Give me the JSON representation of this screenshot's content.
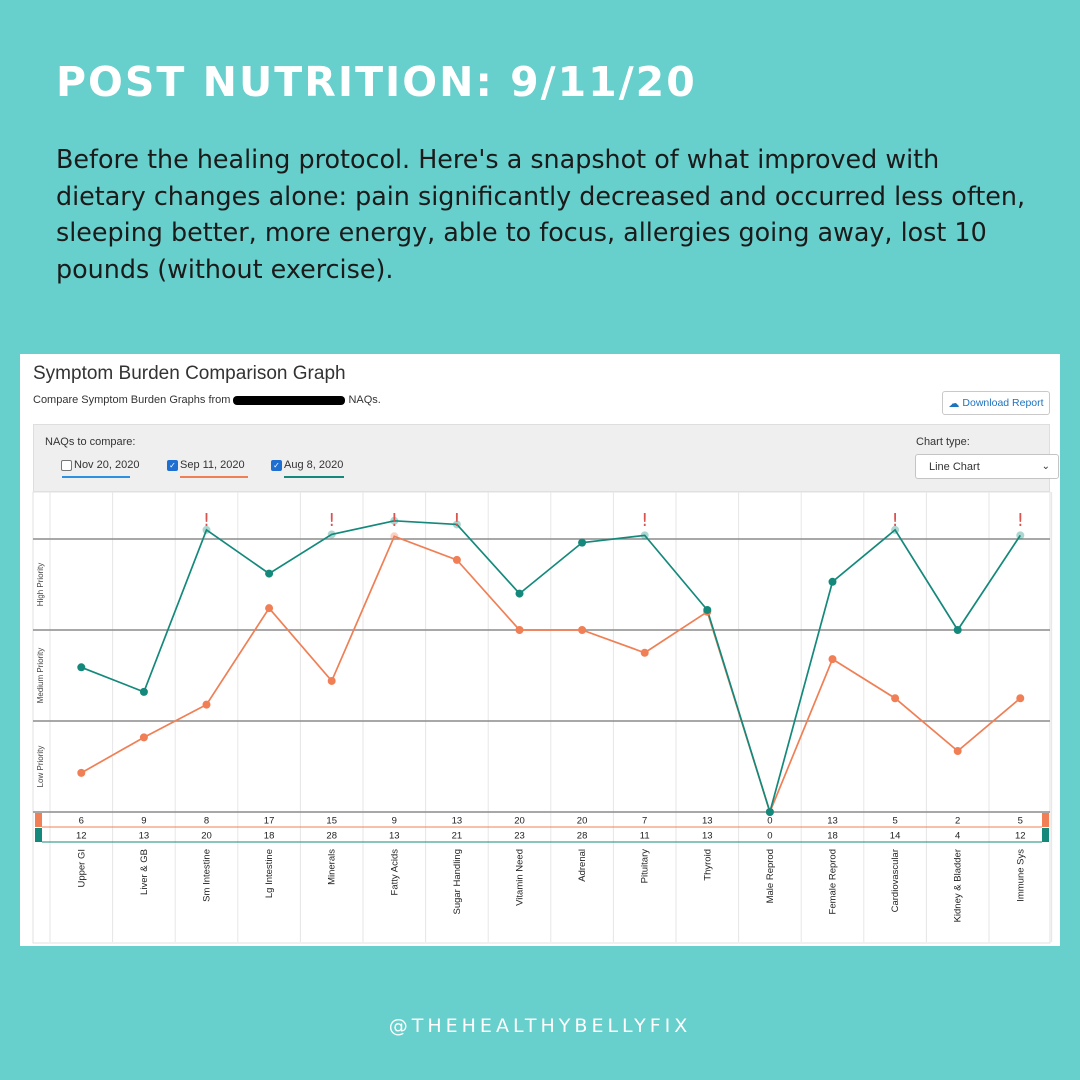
{
  "headline": "POST NUTRITION: 9/11/20",
  "subtext": "Before the healing protocol. Here's a snapshot of what improved with dietary changes alone: pain significantly decreased and occurred less often, sleeping better, more energy, able to focus, allergies going away, lost 10 pounds (without exercise).",
  "card": {
    "title": "Symptom Burden Comparison Graph",
    "subtitle_before": "Compare Symptom Burden Graphs from",
    "subtitle_after": "NAQs.",
    "download_label": "Download Report",
    "download_icon": "cloud-download-icon",
    "naq_label": "NAQs to compare:",
    "naqs": [
      {
        "label": "Nov 20, 2020",
        "checked": false,
        "color": "#2f8fe0"
      },
      {
        "label": "Sep 11, 2020",
        "checked": true,
        "color": "#f07f55"
      },
      {
        "label": "Aug 8, 2020",
        "checked": true,
        "color": "#14897b"
      }
    ],
    "chart_type_label": "Chart type:",
    "chart_type_value": "Line Chart"
  },
  "chart_data": {
    "type": "line",
    "categories": [
      "Upper GI",
      "Liver & GB",
      "Sm Intestine",
      "Lg Intestine",
      "Minerals",
      "Fatty Acids",
      "Sugar Handling",
      "Vitamin Need",
      "Adrenal",
      "Pituitary",
      "Thyroid",
      "Male Reprod",
      "Female Reprod",
      "Cardiovascular",
      "Kidney & Bladder",
      "Immune Sys"
    ],
    "bands": [
      "Low Priority",
      "Medium Priority",
      "High Priority"
    ],
    "series": [
      {
        "color": "#f07f55",
        "row_values": [
          6,
          9,
          8,
          17,
          15,
          9,
          13,
          20,
          20,
          7,
          13,
          0,
          13,
          5,
          2,
          5
        ],
        "level": [
          0.43,
          0.82,
          1.18,
          2.24,
          1.44,
          3.03,
          2.77,
          2.0,
          2.0,
          1.75,
          2.2,
          0.0,
          1.68,
          1.25,
          0.67,
          1.25
        ]
      },
      {
        "color": "#14897b",
        "row_values": [
          12,
          13,
          20,
          18,
          28,
          13,
          21,
          23,
          28,
          11,
          13,
          0,
          18,
          14,
          4,
          12
        ],
        "level": [
          1.59,
          1.32,
          3.1,
          2.62,
          3.05,
          3.2,
          3.16,
          2.4,
          2.96,
          3.04,
          2.22,
          0.0,
          2.53,
          3.1,
          2.0,
          3.04
        ]
      }
    ],
    "alerts": [
      false,
      false,
      true,
      false,
      true,
      true,
      true,
      false,
      false,
      true,
      false,
      false,
      false,
      true,
      false,
      true
    ],
    "alert_symbol": "!",
    "ylim": [
      0,
      3.3
    ]
  },
  "footer": "@THEHEALTHYBELLYFIX"
}
